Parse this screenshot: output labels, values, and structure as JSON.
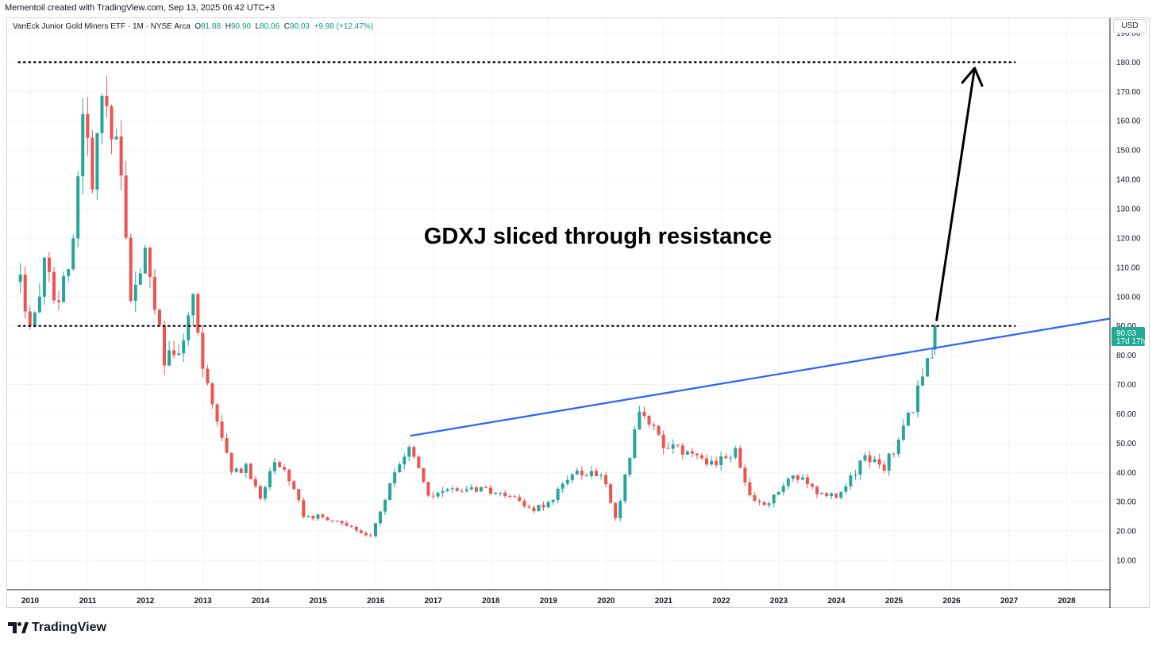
{
  "credit": "Mementoil created with TradingView.com, Sep 13, 2025 06:42 UTC+3",
  "legend": {
    "symbol": "VanEck Junior Gold Miners ETF · 1M · NYSE Arca",
    "o_label": "O",
    "o": "81.88",
    "h_label": "H",
    "h": "90.90",
    "l_label": "L",
    "l": "80.06",
    "c_label": "C",
    "c": "90.03",
    "change": "+9.98 (+12.47%)"
  },
  "currency": "USD",
  "price_tag": {
    "price": "90.03",
    "countdown": "17d 17h"
  },
  "brand": "TradingView",
  "colors": {
    "up": "#26a69a",
    "down": "#ef5350",
    "trendline": "#2962ff",
    "accent": "#22ab94"
  },
  "chart_data": {
    "type": "candlestick",
    "interval": "1M",
    "ylim": [
      0,
      195
    ],
    "y_ticks": [
      10,
      20,
      30,
      40,
      50,
      60,
      70,
      80,
      90,
      100,
      110,
      120,
      130,
      140,
      150,
      160,
      170,
      180,
      190
    ],
    "y_tick_labels": [
      "10.00",
      "20.00",
      "30.00",
      "40.00",
      "50.00",
      "60.00",
      "70.00",
      "80.00",
      "90.00",
      "100.00",
      "110.00",
      "120.00",
      "130.00",
      "140.00",
      "150.00",
      "160.00",
      "170.00",
      "180.00",
      "190.00"
    ],
    "x_range": [
      2009.6,
      2028.75
    ],
    "x_ticks": [
      "2010",
      "2011",
      "2012",
      "2013",
      "2014",
      "2015",
      "2016",
      "2017",
      "2018",
      "2019",
      "2020",
      "2021",
      "2022",
      "2023",
      "2024",
      "2025",
      "2026",
      "2027",
      "2028"
    ],
    "grid": true,
    "annotation": "GDXJ sliced through resistance",
    "horizontal_levels": [
      {
        "value": 180,
        "x_start": 2009.8,
        "x_end": 2027.1,
        "style": "dotted"
      },
      {
        "value": 90,
        "x_start": 2009.8,
        "x_end": 2027.1,
        "style": "dotted"
      }
    ],
    "trendline": {
      "x1": 2016.6,
      "y1": 52.5,
      "x2": 2028.75,
      "y2": 92.5
    },
    "arrow": {
      "x1": 2025.74,
      "y1": 92,
      "x2": 2026.4,
      "y2": 178
    },
    "anchors": [
      {
        "x": 2009.83,
        "v": 105
      },
      {
        "x": 2010.0,
        "v": 90
      },
      {
        "x": 2010.25,
        "v": 110
      },
      {
        "x": 2010.5,
        "v": 98
      },
      {
        "x": 2010.75,
        "v": 120
      },
      {
        "x": 2010.92,
        "v": 160
      },
      {
        "x": 2011.08,
        "v": 140
      },
      {
        "x": 2011.25,
        "v": 164
      },
      {
        "x": 2011.5,
        "v": 155
      },
      {
        "x": 2011.75,
        "v": 100
      },
      {
        "x": 2012.0,
        "v": 118
      },
      {
        "x": 2012.33,
        "v": 78
      },
      {
        "x": 2012.67,
        "v": 85
      },
      {
        "x": 2012.83,
        "v": 100
      },
      {
        "x": 2013.0,
        "v": 75
      },
      {
        "x": 2013.5,
        "v": 40
      },
      {
        "x": 2013.75,
        "v": 42
      },
      {
        "x": 2014.0,
        "v": 30
      },
      {
        "x": 2014.25,
        "v": 44
      },
      {
        "x": 2014.5,
        "v": 38
      },
      {
        "x": 2014.75,
        "v": 25
      },
      {
        "x": 2015.0,
        "v": 25
      },
      {
        "x": 2015.5,
        "v": 22
      },
      {
        "x": 2015.92,
        "v": 18
      },
      {
        "x": 2016.33,
        "v": 40
      },
      {
        "x": 2016.58,
        "v": 50
      },
      {
        "x": 2016.92,
        "v": 32
      },
      {
        "x": 2017.25,
        "v": 35
      },
      {
        "x": 2017.75,
        "v": 34
      },
      {
        "x": 2018.25,
        "v": 33
      },
      {
        "x": 2018.75,
        "v": 27
      },
      {
        "x": 2019.0,
        "v": 30
      },
      {
        "x": 2019.5,
        "v": 40
      },
      {
        "x": 2019.92,
        "v": 40
      },
      {
        "x": 2020.17,
        "v": 24
      },
      {
        "x": 2020.58,
        "v": 62
      },
      {
        "x": 2021.0,
        "v": 50
      },
      {
        "x": 2021.5,
        "v": 45
      },
      {
        "x": 2021.83,
        "v": 43
      },
      {
        "x": 2022.25,
        "v": 47
      },
      {
        "x": 2022.5,
        "v": 32
      },
      {
        "x": 2022.75,
        "v": 28
      },
      {
        "x": 2023.25,
        "v": 40
      },
      {
        "x": 2023.75,
        "v": 32
      },
      {
        "x": 2024.0,
        "v": 32
      },
      {
        "x": 2024.5,
        "v": 45
      },
      {
        "x": 2024.83,
        "v": 42
      },
      {
        "x": 2025.0,
        "v": 48
      },
      {
        "x": 2025.33,
        "v": 62
      },
      {
        "x": 2025.58,
        "v": 78
      },
      {
        "x": 2025.67,
        "v": 82
      },
      {
        "x": 2025.72,
        "v": 90
      }
    ],
    "final_candle": {
      "x": 2025.71,
      "open": 81.88,
      "high": 90.9,
      "low": 80.06,
      "close": 90.03
    }
  }
}
